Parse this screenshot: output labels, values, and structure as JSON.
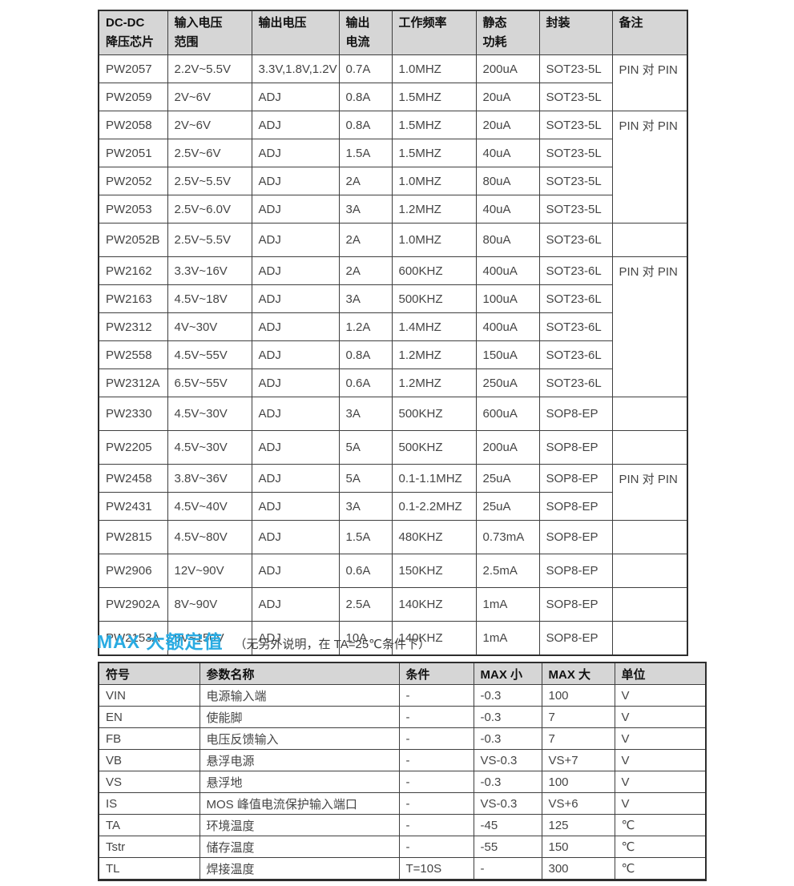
{
  "colors": {
    "accent": "#29ABE2",
    "header_bg": "#D6D6D6",
    "border": "#3F3F3F",
    "text": "#454545"
  },
  "section": {
    "title": "MAX 大额定值",
    "subtitle": "（无另外说明，在 TA=25℃条件下）"
  },
  "table1": {
    "headers": [
      {
        "lines": [
          "DC-DC",
          "降压芯片"
        ]
      },
      {
        "lines": [
          "输入电压",
          "范围"
        ]
      },
      {
        "lines": [
          "输出电压"
        ]
      },
      {
        "lines": [
          "输出",
          "电流"
        ]
      },
      {
        "lines": [
          "工作频率"
        ]
      },
      {
        "lines": [
          "静态",
          "功耗"
        ]
      },
      {
        "lines": [
          "封装"
        ]
      },
      {
        "lines": [
          "备注"
        ]
      }
    ],
    "rows": [
      [
        "PW2057",
        "2.2V~5.5V",
        "3.3V,1.8V,1.2V",
        "0.7A",
        "1.0MHZ",
        "200uA",
        "SOT23-5L"
      ],
      [
        "PW2059",
        "2V~6V",
        "ADJ",
        "0.8A",
        "1.5MHZ",
        "20uA",
        "SOT23-5L"
      ],
      [
        "PW2058",
        "2V~6V",
        "ADJ",
        "0.8A",
        "1.5MHZ",
        "20uA",
        "SOT23-5L"
      ],
      [
        "PW2051",
        "2.5V~6V",
        "ADJ",
        "1.5A",
        "1.5MHZ",
        "40uA",
        "SOT23-5L"
      ],
      [
        "PW2052",
        "2.5V~5.5V",
        "ADJ",
        "2A",
        "1.0MHZ",
        "80uA",
        "SOT23-5L"
      ],
      [
        "PW2053",
        "2.5V~6.0V",
        "ADJ",
        "3A",
        "1.2MHZ",
        "40uA",
        "SOT23-5L"
      ],
      [
        "PW2052B",
        "2.5V~5.5V",
        "ADJ",
        "2A",
        "1.0MHZ",
        "80uA",
        "SOT23-6L"
      ],
      [
        "PW2162",
        "3.3V~16V",
        "ADJ",
        "2A",
        "600KHZ",
        "400uA",
        "SOT23-6L"
      ],
      [
        "PW2163",
        "4.5V~18V",
        "ADJ",
        "3A",
        "500KHZ",
        "100uA",
        "SOT23-6L"
      ],
      [
        "PW2312",
        "4V~30V",
        "ADJ",
        "1.2A",
        "1.4MHZ",
        "400uA",
        "SOT23-6L"
      ],
      [
        "PW2558",
        "4.5V~55V",
        "ADJ",
        "0.8A",
        "1.2MHZ",
        "150uA",
        "SOT23-6L"
      ],
      [
        "PW2312A",
        "6.5V~55V",
        "ADJ",
        "0.6A",
        "1.2MHZ",
        "250uA",
        "SOT23-6L"
      ],
      [
        "PW2330",
        "4.5V~30V",
        "ADJ",
        "3A",
        "500KHZ",
        "600uA",
        "SOP8-EP"
      ],
      [
        "PW2205",
        "4.5V~30V",
        "ADJ",
        "5A",
        "500KHZ",
        "200uA",
        "SOP8-EP"
      ],
      [
        "PW2458",
        "3.8V~36V",
        "ADJ",
        "5A",
        "0.1-1.1MHZ",
        "25uA",
        "SOP8-EP"
      ],
      [
        "PW2431",
        "4.5V~40V",
        "ADJ",
        "3A",
        "0.1-2.2MHZ",
        "25uA",
        "SOP8-EP"
      ],
      [
        "PW2815",
        "4.5V~80V",
        "ADJ",
        "1.5A",
        "480KHZ",
        "0.73mA",
        "SOP8-EP"
      ],
      [
        "PW2906",
        "12V~90V",
        "ADJ",
        "0.6A",
        "150KHZ",
        "2.5mA",
        "SOP8-EP"
      ],
      [
        "PW2902A",
        "8V~90V",
        "ADJ",
        "2.5A",
        "140KHZ",
        "1mA",
        "SOP8-EP"
      ],
      [
        "PW2153A",
        "8V~150V",
        "ADJ",
        "10A",
        "140KHZ",
        "1mA",
        "SOP8-EP"
      ]
    ],
    "remarks": [
      {
        "at": 0,
        "span": 2,
        "text": "PIN 对 PIN"
      },
      {
        "at": 2,
        "span": 4,
        "text": "PIN 对 PIN"
      },
      {
        "at": 6,
        "span": 1,
        "text": ""
      },
      {
        "at": 7,
        "span": 5,
        "text": "PIN 对 PIN"
      },
      {
        "at": 12,
        "span": 1,
        "text": ""
      },
      {
        "at": 13,
        "span": 1,
        "text": ""
      },
      {
        "at": 14,
        "span": 2,
        "text": "PIN 对 PIN"
      },
      {
        "at": 16,
        "span": 1,
        "text": ""
      },
      {
        "at": 17,
        "span": 1,
        "text": ""
      },
      {
        "at": 18,
        "span": 1,
        "text": ""
      },
      {
        "at": 19,
        "span": 1,
        "text": ""
      }
    ]
  },
  "table2": {
    "headers": [
      "符号",
      "参数名称",
      "条件",
      "MAX 小",
      "MAX 大",
      "单位"
    ],
    "rows": [
      [
        "VIN",
        "电源输入端",
        "-",
        "-0.3",
        "100",
        "V"
      ],
      [
        "EN",
        "使能脚",
        "-",
        "-0.3",
        "7",
        "V"
      ],
      [
        "FB",
        "电压反馈输入",
        "-",
        "-0.3",
        "7",
        "V"
      ],
      [
        "VB",
        "悬浮电源",
        "-",
        "VS-0.3",
        "VS+7",
        "V"
      ],
      [
        "VS",
        "悬浮地",
        "-",
        "-0.3",
        "100",
        "V"
      ],
      [
        "IS",
        "MOS 峰值电流保护输入端口",
        "-",
        "VS-0.3",
        "VS+6",
        "V"
      ],
      [
        "TA",
        "环境温度",
        "-",
        "-45",
        "125",
        "℃"
      ],
      [
        "Tstr",
        "储存温度",
        "-",
        "-55",
        "150",
        "℃"
      ],
      [
        "TL",
        "焊接温度",
        "T=10S",
        "-",
        "300",
        "℃"
      ]
    ]
  }
}
